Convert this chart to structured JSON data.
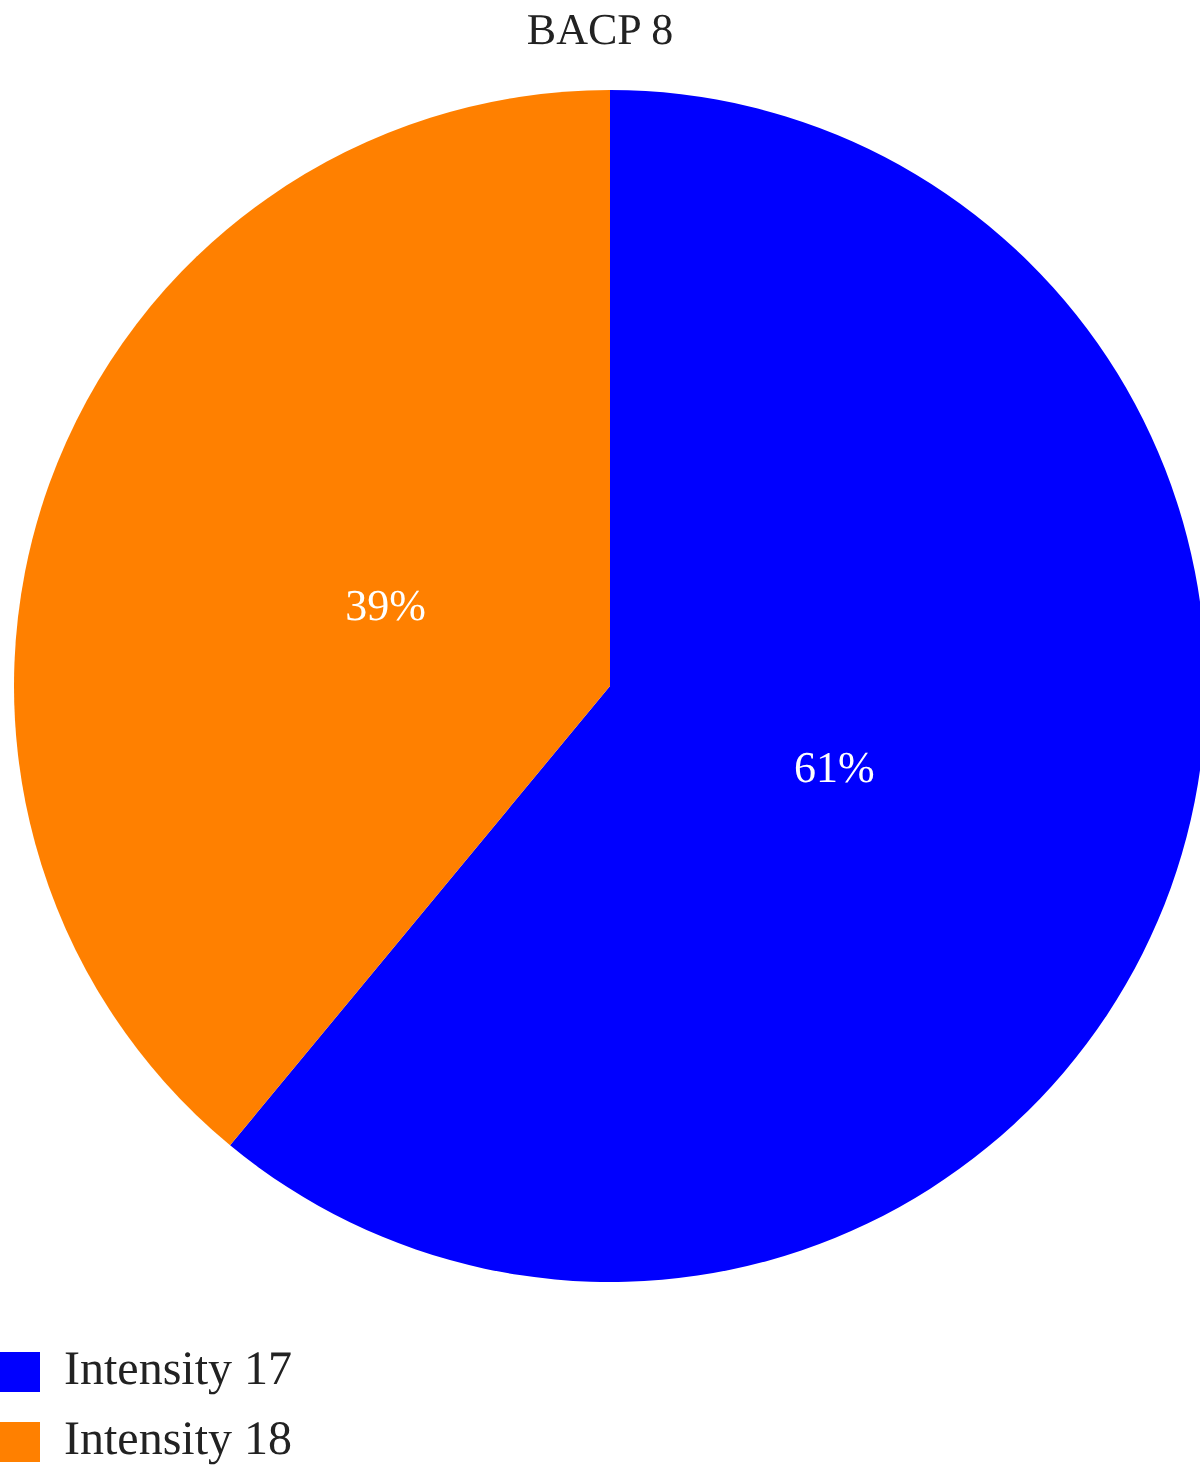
{
  "chart_data": {
    "type": "pie",
    "title": "BACP 8",
    "categories": [
      "Intensity 17",
      "Intensity 18"
    ],
    "values": [
      61,
      39
    ],
    "colors": [
      "#0000ff",
      "#ff8000"
    ],
    "value_labels": [
      "61%",
      "39%"
    ],
    "legend": "bottom left"
  }
}
